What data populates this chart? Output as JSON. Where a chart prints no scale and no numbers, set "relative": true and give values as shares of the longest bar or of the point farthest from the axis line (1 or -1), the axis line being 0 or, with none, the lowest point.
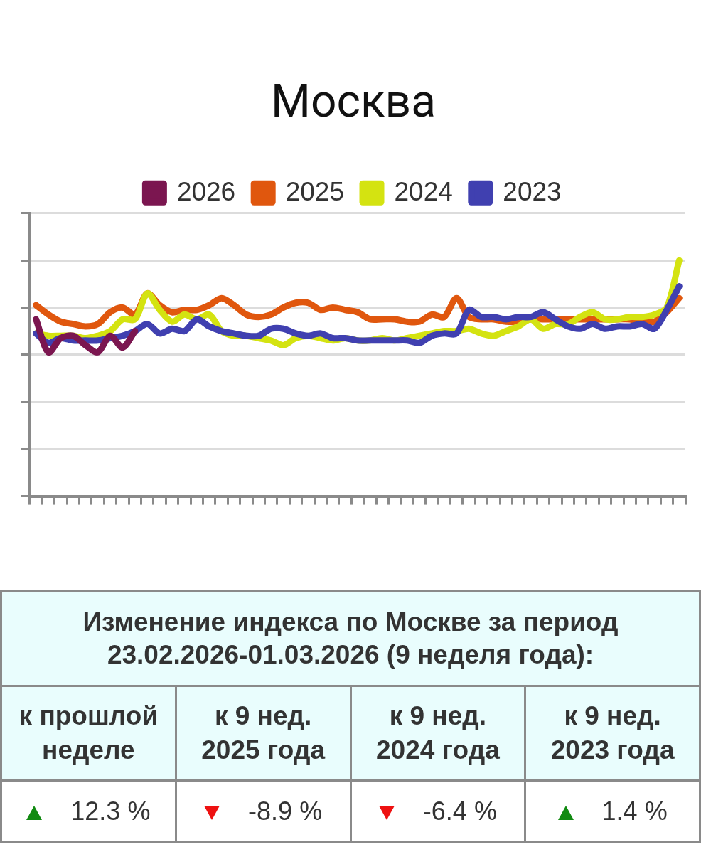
{
  "chart_data": [
    {
      "type": "line",
      "title": "Москва",
      "relative": true,
      "grid": "y",
      "legend": "top",
      "marker": "none",
      "line_style": "solid",
      "categories": [
        null,
        null,
        null,
        null,
        null,
        null,
        null,
        null,
        null,
        null,
        null,
        null,
        null,
        null,
        null,
        null,
        null,
        null,
        null,
        null,
        null,
        null,
        null,
        null,
        null,
        null,
        null,
        null,
        null,
        null,
        null,
        null,
        null,
        null,
        null,
        null,
        null,
        null,
        null,
        null,
        null,
        null,
        null,
        null,
        null,
        null,
        null,
        null,
        null,
        null,
        null,
        null,
        null
      ],
      "series": [
        {
          "name": "2026",
          "color": "#7b1650",
          "values": [
            0.75,
            0.61,
            0.67,
            0.68,
            0.64,
            0.61,
            0.68,
            0.63,
            0.7,
            null,
            null,
            null,
            null,
            null,
            null,
            null,
            null,
            null,
            null,
            null,
            null,
            null,
            null,
            null,
            null,
            null,
            null,
            null,
            null,
            null,
            null,
            null,
            null,
            null,
            null,
            null,
            null,
            null,
            null,
            null,
            null,
            null,
            null,
            null,
            null,
            null,
            null,
            null,
            null,
            null,
            null,
            null,
            null
          ]
        },
        {
          "name": "2025",
          "color": "#e0570e",
          "values": [
            0.81,
            0.77,
            0.74,
            0.73,
            0.72,
            0.73,
            0.78,
            0.8,
            0.77,
            0.86,
            0.81,
            0.78,
            0.79,
            0.79,
            0.81,
            0.84,
            0.81,
            0.77,
            0.76,
            0.77,
            0.8,
            0.82,
            0.82,
            0.79,
            0.8,
            0.79,
            0.78,
            0.75,
            0.75,
            0.75,
            0.74,
            0.74,
            0.77,
            0.76,
            0.84,
            0.76,
            0.75,
            0.75,
            0.74,
            0.74,
            0.75,
            0.75,
            0.75,
            0.75,
            0.75,
            0.75,
            0.75,
            0.75,
            0.75,
            0.74,
            0.74,
            0.78,
            0.84
          ]
        },
        {
          "name": "2024",
          "color": "#d4e311",
          "values": [
            0.69,
            0.68,
            0.68,
            0.68,
            0.67,
            0.68,
            0.7,
            0.75,
            0.75,
            0.86,
            0.79,
            0.74,
            0.77,
            0.75,
            0.77,
            0.7,
            0.68,
            0.68,
            0.67,
            0.66,
            0.64,
            0.67,
            0.68,
            0.67,
            0.66,
            0.67,
            0.66,
            0.66,
            0.67,
            0.66,
            0.67,
            0.68,
            0.69,
            0.7,
            0.7,
            0.71,
            0.69,
            0.68,
            0.7,
            0.72,
            0.75,
            0.71,
            0.73,
            0.73,
            0.76,
            0.78,
            0.75,
            0.75,
            0.76,
            0.76,
            0.77,
            0.8,
            1
          ]
        },
        {
          "name": "2023",
          "color": "#4040b0",
          "values": [
            0.69,
            0.65,
            0.67,
            0.66,
            0.66,
            0.66,
            0.67,
            0.68,
            0.7,
            0.73,
            0.69,
            0.71,
            0.7,
            0.75,
            0.72,
            0.7,
            0.69,
            0.68,
            0.68,
            0.71,
            0.71,
            0.69,
            0.68,
            0.69,
            0.67,
            0.67,
            0.66,
            0.66,
            0.66,
            0.66,
            0.66,
            0.65,
            0.68,
            0.69,
            0.69,
            0.79,
            0.76,
            0.76,
            0.75,
            0.76,
            0.76,
            0.78,
            0.75,
            0.72,
            0.71,
            0.73,
            0.71,
            0.72,
            0.72,
            0.73,
            0.71,
            0.79,
            0.89
          ]
        }
      ]
    },
    {
      "type": "other",
      "title": "Изменение индекса по Москве за период\n23.02.2026-01.03.2026 (9 неделя года):",
      "categories": [
        "к прошлой\nнеделе",
        "к 9 нед.\n2025 года",
        "к 9 нед.\n2024 года",
        "к 9 нед.\n2023 года"
      ],
      "values": [
        12.3,
        -8.9,
        -6.4,
        1.4
      ],
      "value_labels": [
        "12.3 %",
        "-8.9 %",
        "-6.4 %",
        "1.4 %"
      ]
    }
  ]
}
